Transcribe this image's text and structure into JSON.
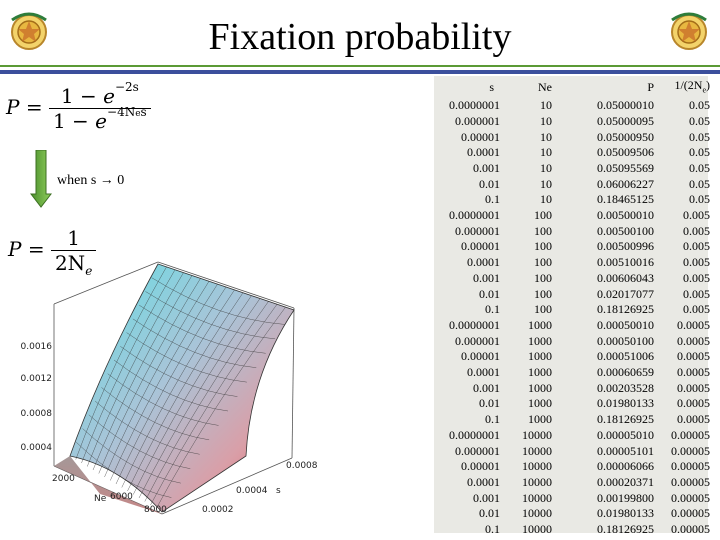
{
  "title": "Fixation probability",
  "equation1": {
    "lhs": "P",
    "num_one": "1",
    "num_minus": "−",
    "num_exp_base": "e",
    "num_exp": "−2s",
    "den_one": "1",
    "den_minus": "−",
    "den_exp_base": "e",
    "den_exp": "−4N",
    "den_exp_sub": "e",
    "den_exp_tail": "s"
  },
  "limit_label": "when s → 0",
  "equation2": {
    "lhs": "P",
    "num": "1",
    "den": "2N",
    "den_sub": "e"
  },
  "plot": {
    "z_ticks": [
      "0.0016",
      "0.0012",
      "0.0008",
      "0.0004"
    ],
    "s_ticks": [
      "0.0008",
      "0.0004",
      "0.0002"
    ],
    "s_label": "s",
    "ne_ticks": [
      "2000",
      "6000",
      "8000"
    ],
    "ne_label": "Ne"
  },
  "table": {
    "headers": [
      "s",
      "Ne",
      "P",
      "1/(2N",
      "e",
      ")"
    ],
    "rows": [
      [
        "0.0000001",
        "10",
        "0.05000010",
        "0.05"
      ],
      [
        "0.000001",
        "10",
        "0.05000095",
        "0.05"
      ],
      [
        "0.00001",
        "10",
        "0.05000950",
        "0.05"
      ],
      [
        "0.0001",
        "10",
        "0.05009506",
        "0.05"
      ],
      [
        "0.001",
        "10",
        "0.05095569",
        "0.05"
      ],
      [
        "0.01",
        "10",
        "0.06006227",
        "0.05"
      ],
      [
        "0.1",
        "10",
        "0.18465125",
        "0.05"
      ],
      [
        "0.0000001",
        "100",
        "0.00500010",
        "0.005"
      ],
      [
        "0.000001",
        "100",
        "0.00500100",
        "0.005"
      ],
      [
        "0.00001",
        "100",
        "0.00500996",
        "0.005"
      ],
      [
        "0.0001",
        "100",
        "0.00510016",
        "0.005"
      ],
      [
        "0.001",
        "100",
        "0.00606043",
        "0.005"
      ],
      [
        "0.01",
        "100",
        "0.02017077",
        "0.005"
      ],
      [
        "0.1",
        "100",
        "0.18126925",
        "0.005"
      ],
      [
        "0.0000001",
        "1000",
        "0.00050010",
        "0.0005"
      ],
      [
        "0.000001",
        "1000",
        "0.00050100",
        "0.0005"
      ],
      [
        "0.00001",
        "1000",
        "0.00051006",
        "0.0005"
      ],
      [
        "0.0001",
        "1000",
        "0.00060659",
        "0.0005"
      ],
      [
        "0.001",
        "1000",
        "0.00203528",
        "0.0005"
      ],
      [
        "0.01",
        "1000",
        "0.01980133",
        "0.0005"
      ],
      [
        "0.1",
        "1000",
        "0.18126925",
        "0.0005"
      ],
      [
        "0.0000001",
        "10000",
        "0.00005010",
        "0.00005"
      ],
      [
        "0.000001",
        "10000",
        "0.00005101",
        "0.00005"
      ],
      [
        "0.00001",
        "10000",
        "0.00006066",
        "0.00005"
      ],
      [
        "0.0001",
        "10000",
        "0.00020371",
        "0.00005"
      ],
      [
        "0.001",
        "10000",
        "0.00199800",
        "0.00005"
      ],
      [
        "0.01",
        "10000",
        "0.01980133",
        "0.00005"
      ],
      [
        "0.1",
        "10000",
        "0.18126925",
        "0.00005"
      ]
    ]
  },
  "colors": {
    "rule_green": "#5b9a35",
    "rule_blue": "#3b4f9c",
    "surface_high": "#6fe3e3",
    "surface_low": "#e86a6a"
  }
}
